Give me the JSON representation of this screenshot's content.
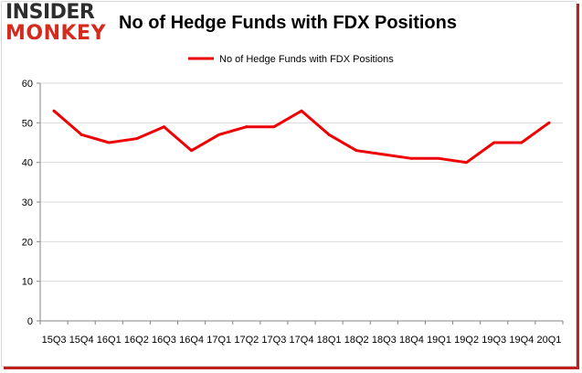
{
  "logo": {
    "line1": "INSIDER",
    "line2": "MONKEY"
  },
  "chart_data": {
    "type": "line",
    "title": "No of Hedge Funds with FDX Positions",
    "xlabel": "",
    "ylabel": "",
    "categories": [
      "15Q3",
      "15Q4",
      "16Q1",
      "16Q2",
      "16Q3",
      "16Q4",
      "17Q1",
      "17Q2",
      "17Q3",
      "17Q4",
      "18Q1",
      "18Q2",
      "18Q3",
      "18Q4",
      "19Q1",
      "19Q2",
      "19Q3",
      "19Q4",
      "20Q1"
    ],
    "series": [
      {
        "name": "No of Hedge Funds with FDX Positions",
        "color": "#ee0000",
        "values": [
          53,
          47,
          45,
          46,
          49,
          43,
          47,
          49,
          49,
          53,
          47,
          43,
          42,
          41,
          41,
          40,
          45,
          45,
          50
        ]
      }
    ],
    "ylim": [
      0,
      60
    ],
    "yticks": [
      0,
      10,
      20,
      30,
      40,
      50,
      60
    ],
    "grid": true,
    "legend_position": "top-center"
  }
}
